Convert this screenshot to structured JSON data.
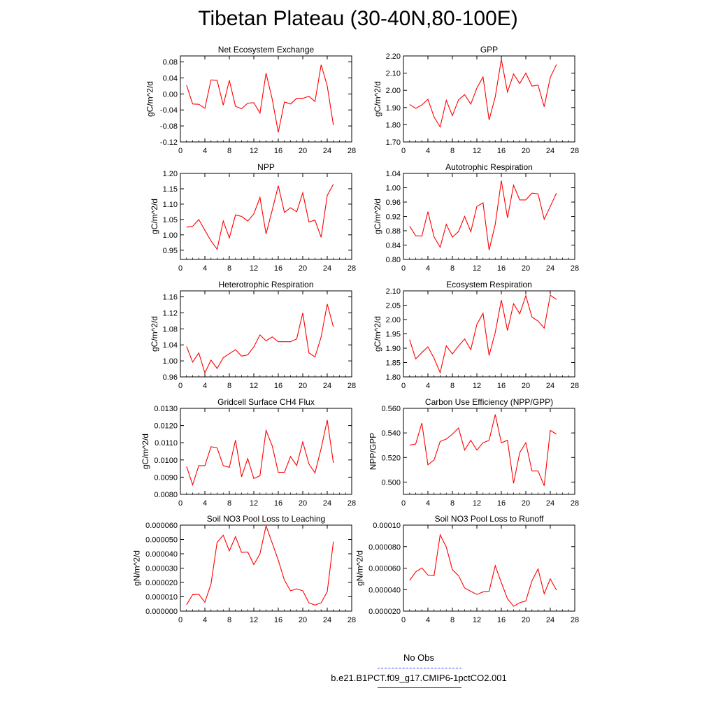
{
  "title": "Tibetan Plateau (30-40N,80-100E)",
  "colors": {
    "series": "#ff0000",
    "obs": "#3a3aff",
    "axis": "#000000"
  },
  "legend": {
    "obs_label": "No Obs",
    "model_label": "b.e21.B1PCT.f09_g17.CMIP6-1pctCO2.001"
  },
  "chart_data": [
    {
      "type": "line",
      "title": "Net Ecosystem Exchange",
      "ylabel": "gC/m^2/d",
      "xlim": [
        0,
        28
      ],
      "xticks": [
        "0",
        "4",
        "8",
        "12",
        "16",
        "20",
        "24",
        "28"
      ],
      "ylim": [
        -0.12,
        0.095
      ],
      "yticks": [
        "0.08",
        "0.04",
        "0.00",
        "-0.04",
        "-0.08",
        "-0.12"
      ],
      "ytick_values": [
        0.08,
        0.04,
        0.0,
        -0.04,
        -0.08,
        -0.12
      ],
      "series": [
        {
          "x": [
            1,
            2,
            3,
            4,
            5,
            6,
            7,
            8,
            9,
            10,
            11,
            12,
            13,
            14,
            15,
            16,
            17,
            18,
            19,
            20,
            21,
            22,
            23,
            24,
            25
          ],
          "values": [
            0.022,
            -0.025,
            -0.026,
            -0.036,
            0.035,
            0.034,
            -0.028,
            0.034,
            -0.031,
            -0.037,
            -0.023,
            -0.022,
            -0.048,
            0.052,
            -0.013,
            -0.096,
            -0.02,
            -0.025,
            -0.011,
            -0.011,
            -0.006,
            -0.019,
            0.073,
            0.02,
            -0.078
          ]
        }
      ]
    },
    {
      "type": "line",
      "title": "GPP",
      "ylabel": "gC/m^2/d",
      "xlim": [
        0,
        28
      ],
      "xticks": [
        "0",
        "4",
        "8",
        "12",
        "16",
        "20",
        "24",
        "28"
      ],
      "ylim": [
        1.7,
        2.2
      ],
      "yticks": [
        "2.20",
        "2.10",
        "2.00",
        "1.90",
        "1.80",
        "1.70"
      ],
      "ytick_values": [
        2.2,
        2.1,
        2.0,
        1.9,
        1.8,
        1.7
      ],
      "series": [
        {
          "x": [
            1,
            2,
            3,
            4,
            5,
            6,
            7,
            8,
            9,
            10,
            11,
            12,
            13,
            14,
            15,
            16,
            17,
            18,
            19,
            20,
            21,
            22,
            23,
            24,
            25
          ],
          "values": [
            1.918,
            1.895,
            1.915,
            1.948,
            1.845,
            1.787,
            1.942,
            1.853,
            1.945,
            1.975,
            1.92,
            2.013,
            2.078,
            1.828,
            1.962,
            2.18,
            1.99,
            2.095,
            2.04,
            2.1,
            2.025,
            2.03,
            1.905,
            2.075,
            2.15
          ]
        }
      ]
    },
    {
      "type": "line",
      "title": "NPP",
      "ylabel": "gC/m^2/d",
      "xlim": [
        0,
        28
      ],
      "xticks": [
        "0",
        "4",
        "8",
        "12",
        "16",
        "20",
        "24",
        "28"
      ],
      "ylim": [
        0.92,
        1.2
      ],
      "yticks": [
        "1.20",
        "1.15",
        "1.10",
        "1.05",
        "1.00",
        "0.95"
      ],
      "ytick_values": [
        1.2,
        1.15,
        1.1,
        1.05,
        1.0,
        0.95
      ],
      "series": [
        {
          "x": [
            1,
            2,
            3,
            4,
            5,
            6,
            7,
            8,
            9,
            10,
            11,
            12,
            13,
            14,
            15,
            16,
            17,
            18,
            19,
            20,
            21,
            22,
            23,
            24,
            25
          ],
          "values": [
            1.025,
            1.028,
            1.05,
            1.015,
            0.98,
            0.953,
            1.045,
            0.99,
            1.065,
            1.06,
            1.045,
            1.068,
            1.122,
            1.003,
            1.08,
            1.16,
            1.073,
            1.088,
            1.075,
            1.137,
            1.042,
            1.048,
            0.992,
            1.128,
            1.165
          ]
        }
      ]
    },
    {
      "type": "line",
      "title": "Autotrophic Respiration",
      "ylabel": "gC/m^2/d",
      "xlim": [
        0,
        28
      ],
      "xticks": [
        "0",
        "4",
        "8",
        "12",
        "16",
        "20",
        "24",
        "28"
      ],
      "ylim": [
        0.8,
        1.04
      ],
      "yticks": [
        "1.04",
        "1.00",
        "0.96",
        "0.92",
        "0.88",
        "0.84",
        "0.80"
      ],
      "ytick_values": [
        1.04,
        1.0,
        0.96,
        0.92,
        0.88,
        0.84,
        0.8
      ],
      "series": [
        {
          "x": [
            1,
            2,
            3,
            4,
            5,
            6,
            7,
            8,
            9,
            10,
            11,
            12,
            13,
            14,
            15,
            16,
            17,
            18,
            19,
            20,
            21,
            22,
            23,
            24,
            25
          ],
          "values": [
            0.893,
            0.866,
            0.865,
            0.933,
            0.863,
            0.834,
            0.898,
            0.862,
            0.878,
            0.92,
            0.877,
            0.948,
            0.958,
            0.826,
            0.898,
            1.02,
            0.916,
            1.007,
            0.966,
            0.966,
            0.985,
            0.983,
            0.912,
            0.948,
            0.985
          ]
        }
      ]
    },
    {
      "type": "line",
      "title": "Heterotrophic Respiration",
      "ylabel": "gC/m^2/d",
      "xlim": [
        0,
        28
      ],
      "xticks": [
        "0",
        "4",
        "8",
        "12",
        "16",
        "20",
        "24",
        "28"
      ],
      "ylim": [
        0.96,
        1.175
      ],
      "yticks": [
        "1.16",
        "1.12",
        "1.08",
        "1.04",
        "1.00",
        "0.96"
      ],
      "ytick_values": [
        1.16,
        1.12,
        1.08,
        1.04,
        1.0,
        0.96
      ],
      "series": [
        {
          "x": [
            1,
            2,
            3,
            4,
            5,
            6,
            7,
            8,
            9,
            10,
            11,
            12,
            13,
            14,
            15,
            16,
            17,
            18,
            19,
            20,
            21,
            22,
            23,
            24,
            25
          ],
          "values": [
            1.036,
            0.997,
            1.02,
            0.97,
            1.002,
            0.981,
            1.008,
            1.018,
            1.028,
            1.012,
            1.015,
            1.035,
            1.065,
            1.05,
            1.06,
            1.048,
            1.048,
            1.048,
            1.055,
            1.12,
            1.02,
            1.01,
            1.06,
            1.142,
            1.085
          ]
        }
      ]
    },
    {
      "type": "line",
      "title": "Ecosystem Respiration",
      "ylabel": "gC/m^2/d",
      "xlim": [
        0,
        28
      ],
      "xticks": [
        "0",
        "4",
        "8",
        "12",
        "16",
        "20",
        "24",
        "28"
      ],
      "ylim": [
        1.8,
        2.1
      ],
      "yticks": [
        "2.10",
        "2.05",
        "2.00",
        "1.95",
        "1.90",
        "1.85",
        "1.80"
      ],
      "ytick_values": [
        2.1,
        2.05,
        2.0,
        1.95,
        1.9,
        1.85,
        1.8
      ],
      "series": [
        {
          "x": [
            1,
            2,
            3,
            4,
            5,
            6,
            7,
            8,
            9,
            10,
            11,
            12,
            13,
            14,
            15,
            16,
            17,
            18,
            19,
            20,
            21,
            22,
            23,
            24,
            25
          ],
          "values": [
            1.93,
            1.863,
            1.885,
            1.905,
            1.865,
            1.815,
            1.908,
            1.88,
            1.908,
            1.932,
            1.895,
            1.983,
            2.022,
            1.875,
            1.955,
            2.068,
            1.962,
            2.055,
            2.02,
            2.083,
            2.008,
            1.995,
            1.97,
            2.085,
            2.07
          ]
        }
      ]
    },
    {
      "type": "line",
      "title": "Gridcell Surface CH4 Flux",
      "ylabel": "gC/m^2/d",
      "xlim": [
        0,
        28
      ],
      "xticks": [
        "0",
        "4",
        "8",
        "12",
        "16",
        "20",
        "24",
        "28"
      ],
      "ylim": [
        0.008,
        0.013
      ],
      "yticks": [
        "0.0130",
        "0.0120",
        "0.0110",
        "0.0100",
        "0.0090",
        "0.0080"
      ],
      "ytick_values": [
        0.013,
        0.012,
        0.011,
        0.01,
        0.009,
        0.008
      ],
      "series": [
        {
          "x": [
            1,
            2,
            3,
            4,
            5,
            6,
            7,
            8,
            9,
            10,
            11,
            12,
            13,
            14,
            15,
            16,
            17,
            18,
            19,
            20,
            21,
            22,
            23,
            24,
            25
          ],
          "values": [
            0.00963,
            0.00855,
            0.00967,
            0.00967,
            0.01077,
            0.0107,
            0.00967,
            0.00957,
            0.01115,
            0.00902,
            0.01008,
            0.00892,
            0.00908,
            0.01172,
            0.01082,
            0.00928,
            0.00928,
            0.0102,
            0.00967,
            0.01105,
            0.00977,
            0.00925,
            0.01067,
            0.01232,
            0.00983
          ]
        }
      ]
    },
    {
      "type": "line",
      "title": "Carbon Use Efficiency (NPP/GPP)",
      "ylabel": "NPP/GPP",
      "xlim": [
        0,
        28
      ],
      "xticks": [
        "0",
        "4",
        "8",
        "12",
        "16",
        "20",
        "24",
        "28"
      ],
      "ylim": [
        0.49,
        0.56
      ],
      "yticks": [
        "0.560",
        "0.540",
        "0.520",
        "0.500"
      ],
      "ytick_values": [
        0.56,
        0.54,
        0.52,
        0.5
      ],
      "series": [
        {
          "x": [
            1,
            2,
            3,
            4,
            5,
            6,
            7,
            8,
            9,
            10,
            11,
            12,
            13,
            14,
            15,
            16,
            17,
            18,
            19,
            20,
            21,
            22,
            23,
            24,
            25
          ],
          "values": [
            0.53,
            0.531,
            0.548,
            0.514,
            0.518,
            0.533,
            0.535,
            0.539,
            0.544,
            0.526,
            0.534,
            0.526,
            0.532,
            0.534,
            0.555,
            0.532,
            0.534,
            0.499,
            0.524,
            0.532,
            0.509,
            0.509,
            0.497,
            0.542,
            0.539
          ]
        }
      ]
    },
    {
      "type": "line",
      "title": "Soil NO3 Pool Loss to Leaching",
      "ylabel": "gN/m^2/d",
      "xlim": [
        0,
        28
      ],
      "xticks": [
        "0",
        "4",
        "8",
        "12",
        "16",
        "20",
        "24",
        "28"
      ],
      "ylim": [
        0.0,
        6e-05
      ],
      "yticks": [
        "0.000060",
        "0.000050",
        "0.000040",
        "0.000030",
        "0.000020",
        "0.000010",
        "0.000000"
      ],
      "ytick_values": [
        6e-05,
        5e-05,
        4e-05,
        3e-05,
        2e-05,
        1e-05,
        0.0
      ],
      "series": [
        {
          "x": [
            1,
            2,
            3,
            4,
            5,
            6,
            7,
            8,
            9,
            10,
            11,
            12,
            13,
            14,
            15,
            16,
            17,
            18,
            19,
            20,
            21,
            22,
            23,
            24,
            25
          ],
          "values": [
            4.5e-06,
            1.15e-05,
            1.18e-05,
            6.2e-06,
            1.9e-05,
            4.8e-05,
            5.3e-05,
            4.2e-05,
            5.2e-05,
            4.1e-05,
            4.12e-05,
            3.25e-05,
            4e-05,
            5.95e-05,
            4.75e-05,
            3.55e-05,
            2.15e-05,
            1.42e-05,
            1.55e-05,
            1.42e-05,
            5.8e-06,
            4.2e-06,
            5.8e-06,
            1.35e-05,
            4.85e-05
          ]
        }
      ]
    },
    {
      "type": "line",
      "title": "Soil NO3 Pool Loss to Runoff",
      "ylabel": "gN/m^2/d",
      "xlim": [
        0,
        28
      ],
      "xticks": [
        "0",
        "4",
        "8",
        "12",
        "16",
        "20",
        "24",
        "28"
      ],
      "ylim": [
        2e-05,
        0.0001
      ],
      "yticks": [
        "0.00010",
        "0.000080",
        "0.000060",
        "0.000040",
        "0.000020"
      ],
      "ytick_values": [
        0.0001,
        8e-05,
        6e-05,
        4e-05,
        2e-05
      ],
      "series": [
        {
          "x": [
            1,
            2,
            3,
            4,
            5,
            6,
            7,
            8,
            9,
            10,
            11,
            12,
            13,
            14,
            15,
            16,
            17,
            18,
            19,
            20,
            21,
            22,
            23,
            24,
            25
          ],
          "values": [
            4.85e-05,
            5.65e-05,
            6.02e-05,
            5.35e-05,
            5.3e-05,
            9.1e-05,
            7.95e-05,
            5.85e-05,
            5.3e-05,
            4.15e-05,
            3.85e-05,
            3.55e-05,
            3.78e-05,
            3.85e-05,
            6.22e-05,
            4.65e-05,
            3.15e-05,
            2.45e-05,
            2.78e-05,
            2.95e-05,
            4.82e-05,
            5.92e-05,
            3.62e-05,
            5e-05,
            3.95e-05
          ]
        }
      ]
    }
  ]
}
